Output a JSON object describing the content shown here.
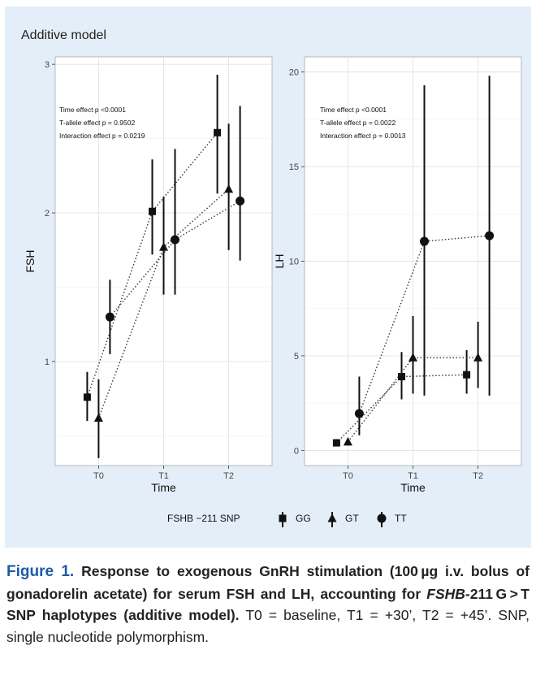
{
  "figure": {
    "panel_title": "Additive model",
    "legend": {
      "title": "FSHB −211 SNP",
      "entries": [
        {
          "label": "GG",
          "marker": "square"
        },
        {
          "label": "GT",
          "marker": "triangle"
        },
        {
          "label": "TT",
          "marker": "circle"
        }
      ]
    }
  },
  "chart_data": [
    {
      "type": "line",
      "ylabel": "FSH",
      "xlabel": "Time",
      "categories": [
        "T0",
        "T1",
        "T2"
      ],
      "ylim": [
        0.3,
        3.05
      ],
      "yticks": [
        1,
        2,
        3
      ],
      "grid": true,
      "annotations": [
        "Time effect p <0.0001",
        "T-allele effect p = 0.9502",
        "Interaction effect p = 0.0219"
      ],
      "series": [
        {
          "name": "GG",
          "marker": "square",
          "values": [
            0.76,
            2.01,
            2.54
          ],
          "lower": [
            0.6,
            1.72,
            2.13
          ],
          "upper": [
            0.93,
            2.36,
            2.93
          ]
        },
        {
          "name": "GT",
          "marker": "triangle",
          "values": [
            0.62,
            1.77,
            2.16
          ],
          "lower": [
            0.35,
            1.45,
            1.75
          ],
          "upper": [
            0.88,
            2.11,
            2.6
          ]
        },
        {
          "name": "TT",
          "marker": "circle",
          "values": [
            1.3,
            1.82,
            2.08
          ],
          "lower": [
            1.05,
            1.45,
            1.68
          ],
          "upper": [
            1.55,
            2.43,
            2.72
          ]
        }
      ]
    },
    {
      "type": "line",
      "ylabel": "LH",
      "xlabel": "Time",
      "categories": [
        "T0",
        "T1",
        "T2"
      ],
      "ylim": [
        -0.8,
        20.8
      ],
      "yticks": [
        0,
        5,
        10,
        15,
        20
      ],
      "grid": true,
      "annotations": [
        "Time effect p <0.0001",
        "T-allele effect p = 0.0022",
        "Interaction effect p = 0.0013"
      ],
      "series": [
        {
          "name": "GG",
          "marker": "square",
          "values": [
            0.4,
            3.9,
            4.0
          ],
          "lower": [
            0.25,
            2.7,
            3.0
          ],
          "upper": [
            0.6,
            5.2,
            5.3
          ]
        },
        {
          "name": "GT",
          "marker": "triangle",
          "values": [
            0.45,
            4.9,
            4.9
          ],
          "lower": [
            0.3,
            3.0,
            3.3
          ],
          "upper": [
            0.6,
            7.1,
            6.8
          ]
        },
        {
          "name": "TT",
          "marker": "circle",
          "values": [
            1.95,
            11.05,
            11.35
          ],
          "lower": [
            0.8,
            2.9,
            2.9
          ],
          "upper": [
            3.9,
            19.3,
            19.8
          ]
        }
      ]
    }
  ],
  "caption": {
    "label": "Figure 1.",
    "title_part1": "Response to exogenous GnRH stimulation (100 µg i.v. bolus of gonadorelin acetate) for serum FSH and LH, accounting for ",
    "title_gene": "FSHB",
    "title_part2": "-211 G > T SNP haplotypes (additive model).",
    "text": " T0 = baseline, T1 = +30’, T2 = +45’. SNP, single nucleotide polymorphism."
  }
}
